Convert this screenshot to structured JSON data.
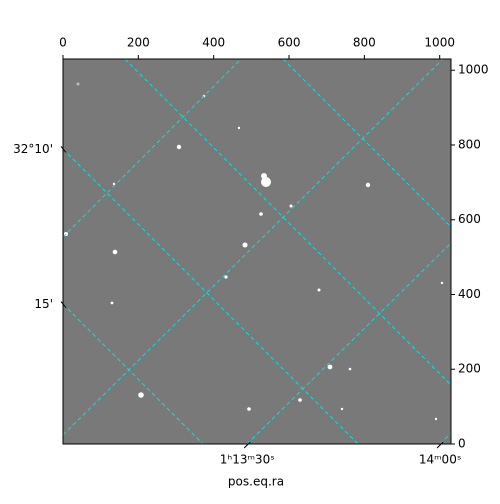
{
  "chart_data": {
    "type": "image",
    "x_label": "pos.eq.ra",
    "xlim": [
      0,
      1030
    ],
    "ylim": [
      0,
      1030
    ],
    "xticks": [
      0,
      200,
      400,
      600,
      800,
      1000
    ],
    "yticks": [
      0,
      200,
      400,
      600,
      800,
      1000
    ],
    "ra_ticks": [
      {
        "value": 489,
        "label": "1ʰ13ᵐ30ˢ"
      },
      {
        "value": 1001,
        "label": "14ᵐ00ˢ"
      }
    ],
    "dec_ticks": [
      {
        "value": 788,
        "label": "32°10'"
      },
      {
        "value": 373,
        "label": "15'"
      }
    ],
    "grid_color": "#00e5e5",
    "image_color": "#797979"
  }
}
